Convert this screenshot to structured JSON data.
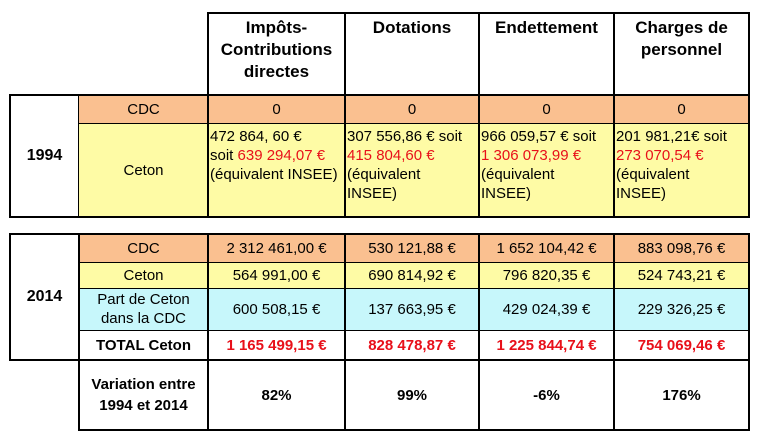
{
  "headers": [
    "Impôts-\nContributions\ndirectes",
    "Dotations",
    "Endettement",
    "Charges de\npersonnel"
  ],
  "table_1994": {
    "year": "1994",
    "cdc": {
      "label": "CDC",
      "values": [
        "0",
        "0",
        "0",
        "0"
      ]
    },
    "ceton": {
      "label": "Ceton",
      "cells": [
        {
          "l1": "472 864, 60 €",
          "l2a": "soit ",
          "l2b": "639 294,07 €",
          "l3": "(équivalent INSEE)",
          "l4": ""
        },
        {
          "l1": "307 556,86 € soit",
          "l2a": "",
          "l2b": "415 804,60 €",
          "l3": "(équivalent",
          "l4": "INSEE)"
        },
        {
          "l1": "966 059,57 € soit",
          "l2a": "",
          "l2b": "1 306 073,99 €",
          "l3": "(équivalent",
          "l4": "INSEE)"
        },
        {
          "l1": "201 981,21€ soit",
          "l2a": "",
          "l2b": "273 070,54 €",
          "l3": "(équivalent",
          "l4": "INSEE)"
        }
      ]
    }
  },
  "table_2014": {
    "year": "2014",
    "cdc": {
      "label": "CDC",
      "values": [
        "2 312 461,00 €",
        "530 121,88 €",
        "1 652 104,42 €",
        "883 098,76 €"
      ]
    },
    "ceton": {
      "label": "Ceton",
      "values": [
        "564 991,00 €",
        "690 814,92 €",
        "796 820,35 €",
        "524 743,21 €"
      ]
    },
    "part": {
      "label": "Part de Ceton\ndans la CDC",
      "values": [
        "600 508,15 €",
        "137 663,95 €",
        "429 024,39 €",
        "229 326,25 €"
      ]
    },
    "total": {
      "label": "TOTAL Ceton",
      "values": [
        "1 165 499,15 €",
        "828 478,87 €",
        "1 225 844,74 €",
        "754 069,46 €"
      ]
    }
  },
  "variation": {
    "label": "Variation entre\n1994 et 2014",
    "values": [
      "82%",
      "99%",
      "-6%",
      "176%"
    ]
  }
}
